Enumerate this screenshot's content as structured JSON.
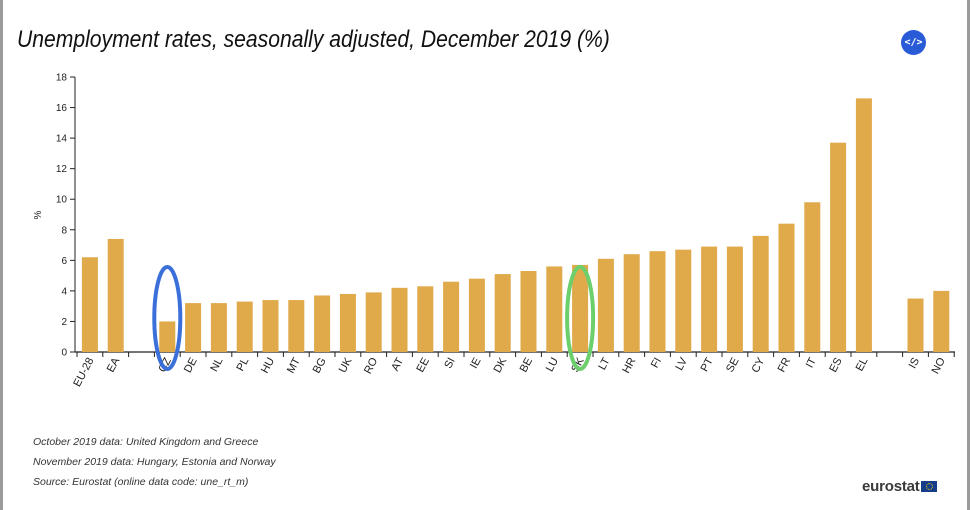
{
  "header": {
    "title": "Unemployment rates, seasonally adjusted, December 2019 (%)",
    "embed_icon": "code-embed-icon",
    "embed_label": "</>"
  },
  "chart_data": {
    "type": "bar",
    "title": "Unemployment rates, seasonally adjusted, December 2019 (%)",
    "ylabel": "%",
    "xlabel": "",
    "ylim": [
      0,
      18
    ],
    "yticks": [
      0,
      2,
      4,
      6,
      8,
      10,
      12,
      14,
      16,
      18
    ],
    "grid": false,
    "bar_color": "#e0a94a",
    "groups": [
      [
        "EU-28",
        "EA"
      ],
      [
        "CZ",
        "DE",
        "NL",
        "PL",
        "HU",
        "MT",
        "BG",
        "UK",
        "RO",
        "AT",
        "EE",
        "SI",
        "IE",
        "DK",
        "BE",
        "LU",
        "SK",
        "LT",
        "HR",
        "FI",
        "LV",
        "PT",
        "SE",
        "CY",
        "FR",
        "IT",
        "ES",
        "EL"
      ],
      [
        "IS",
        "NO"
      ]
    ],
    "categories": [
      "EU-28",
      "EA",
      "CZ",
      "DE",
      "NL",
      "PL",
      "HU",
      "MT",
      "BG",
      "UK",
      "RO",
      "AT",
      "EE",
      "SI",
      "IE",
      "DK",
      "BE",
      "LU",
      "SK",
      "LT",
      "HR",
      "FI",
      "LV",
      "PT",
      "SE",
      "CY",
      "FR",
      "IT",
      "ES",
      "EL",
      "IS",
      "NO"
    ],
    "values": [
      6.2,
      7.4,
      2.0,
      3.2,
      3.2,
      3.3,
      3.4,
      3.4,
      3.7,
      3.8,
      3.9,
      4.2,
      4.3,
      4.6,
      4.8,
      5.1,
      5.3,
      5.6,
      5.7,
      6.1,
      6.4,
      6.6,
      6.7,
      6.9,
      6.9,
      7.6,
      8.4,
      9.8,
      13.7,
      16.6,
      3.5,
      4.0
    ],
    "highlights": [
      {
        "category": "CZ",
        "color": "#3b6fd9"
      },
      {
        "category": "SK",
        "color": "#6ccf6c"
      }
    ]
  },
  "footnotes": [
    "October 2019 data: United Kingdom and Greece",
    "November 2019 data: Hungary, Estonia and Norway",
    "Source: Eurostat (online data code: une_rt_m)"
  ],
  "logo": {
    "text": "eurostat",
    "icon": "eu-flag-icon"
  }
}
